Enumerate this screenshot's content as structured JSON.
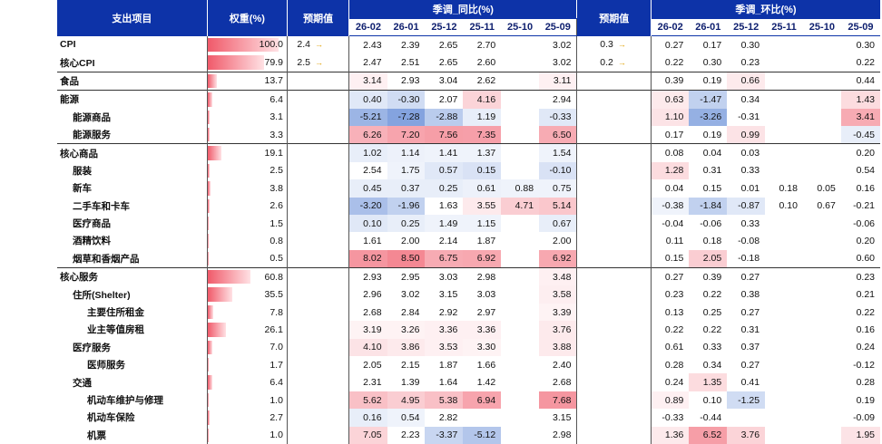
{
  "header": {
    "item_col": "支出项目",
    "weight_col": "权重(%)",
    "forecast_col": "预期值",
    "yoy_group": "季调_同比(%)",
    "forecast_col2": "预期值",
    "mom_group": "季调_环比(%)",
    "months": [
      "26-02",
      "26-01",
      "25-12",
      "25-11",
      "25-10",
      "25-09"
    ]
  },
  "colors": {
    "header_bg": "#0d33a8",
    "header_text": "#ffffff",
    "subheader_text": "#0d1e6e",
    "weight_bar": "#f05a6a",
    "cell_red": "#f05a6a",
    "cell_blue": "#4a78d0",
    "arrow": "#e0a000"
  },
  "rows": [
    {
      "name": "CPI",
      "indent": 0,
      "weight": "100.0",
      "weight_pct": 1.0,
      "yoy_fc": "2.4",
      "yoy_arrow": "→",
      "yoy": [
        "2.43",
        "2.39",
        "2.65",
        "2.70",
        "",
        "3.02"
      ],
      "mom_fc": "0.3",
      "mom_arrow": "→",
      "mom": [
        "0.27",
        "0.17",
        "0.30",
        "",
        "",
        "0.30"
      ],
      "yoy_hl": [
        0,
        0,
        0,
        0,
        0,
        0
      ],
      "mom_hl": [
        0,
        0,
        0,
        0,
        0,
        0
      ]
    },
    {
      "name": "核心CPI",
      "indent": 0,
      "weight": "79.9",
      "weight_pct": 0.8,
      "yoy_fc": "2.5",
      "yoy_arrow": "→",
      "yoy": [
        "2.47",
        "2.51",
        "2.65",
        "2.60",
        "",
        "3.02"
      ],
      "mom_fc": "0.2",
      "mom_arrow": "→",
      "mom": [
        "0.22",
        "0.30",
        "0.23",
        "",
        "",
        "0.22"
      ],
      "yoy_hl": [
        0,
        0,
        0,
        0,
        0,
        0
      ],
      "mom_hl": [
        0,
        0,
        0,
        0,
        0,
        0
      ]
    },
    {
      "name": "食品",
      "indent": 0,
      "weight": "13.7",
      "weight_pct": 0.137,
      "yoy_fc": "",
      "yoy_arrow": "",
      "yoy": [
        "3.14",
        "2.93",
        "3.04",
        "2.62",
        "",
        "3.11"
      ],
      "mom_fc": "",
      "mom_arrow": "",
      "mom": [
        "0.39",
        "0.19",
        "0.66",
        "",
        "",
        "0.44"
      ],
      "yoy_hl": [
        0.1,
        0,
        0,
        0,
        0,
        0.1
      ],
      "mom_hl": [
        0,
        0,
        0.15,
        0,
        0,
        0
      ],
      "grp": true
    },
    {
      "name": "能源",
      "indent": 0,
      "weight": "6.4",
      "weight_pct": 0.064,
      "yoy_fc": "",
      "yoy_arrow": "",
      "yoy": [
        "0.40",
        "-0.30",
        "2.07",
        "4.16",
        "",
        "2.94"
      ],
      "mom_fc": "",
      "mom_arrow": "",
      "mom": [
        "0.63",
        "-1.47",
        "0.34",
        "",
        "",
        "1.43"
      ],
      "yoy_hl": [
        -0.2,
        -0.3,
        0,
        0.3,
        0,
        0
      ],
      "mom_hl": [
        0.15,
        -0.4,
        0,
        0,
        0,
        0.25
      ],
      "grp": true
    },
    {
      "name": "能源商品",
      "indent": 1,
      "weight": "3.1",
      "weight_pct": 0.031,
      "yoy_fc": "",
      "yoy_arrow": "",
      "yoy": [
        "-5.21",
        "-7.28",
        "-2.88",
        "1.19",
        "",
        "-0.33"
      ],
      "mom_fc": "",
      "mom_arrow": "",
      "mom": [
        "1.10",
        "-3.26",
        "-0.31",
        "",
        "",
        "3.41"
      ],
      "yoy_hl": [
        -0.65,
        -0.8,
        -0.45,
        -0.15,
        0,
        -0.2
      ],
      "mom_hl": [
        0.2,
        -0.7,
        0,
        0,
        0,
        0.6
      ]
    },
    {
      "name": "能源服务",
      "indent": 1,
      "weight": "3.3",
      "weight_pct": 0.033,
      "yoy_fc": "",
      "yoy_arrow": "",
      "yoy": [
        "6.26",
        "7.20",
        "7.56",
        "7.35",
        "",
        "6.50"
      ],
      "mom_fc": "",
      "mom_arrow": "",
      "mom": [
        "0.17",
        "0.19",
        "0.99",
        "",
        "",
        "-0.45"
      ],
      "yoy_hl": [
        0.55,
        0.65,
        0.7,
        0.68,
        0,
        0.6
      ],
      "mom_hl": [
        0,
        0,
        0.2,
        0,
        0,
        -0.15
      ]
    },
    {
      "name": "核心商品",
      "indent": 0,
      "weight": "19.1",
      "weight_pct": 0.191,
      "yoy_fc": "",
      "yoy_arrow": "",
      "yoy": [
        "1.02",
        "1.14",
        "1.41",
        "1.37",
        "",
        "1.54"
      ],
      "mom_fc": "",
      "mom_arrow": "",
      "mom": [
        "0.08",
        "0.04",
        "0.03",
        "",
        "",
        "0.20"
      ],
      "yoy_hl": [
        -0.15,
        -0.12,
        -0.1,
        -0.1,
        0,
        -0.1
      ],
      "mom_hl": [
        0,
        0,
        0,
        0,
        0,
        0
      ],
      "grp": true
    },
    {
      "name": "服装",
      "indent": 1,
      "weight": "2.5",
      "weight_pct": 0.025,
      "yoy_fc": "",
      "yoy_arrow": "",
      "yoy": [
        "2.54",
        "1.75",
        "0.57",
        "0.15",
        "",
        "-0.10"
      ],
      "mom_fc": "",
      "mom_arrow": "",
      "mom": [
        "1.28",
        "0.31",
        "0.33",
        "",
        "",
        "0.54"
      ],
      "yoy_hl": [
        0,
        -0.1,
        -0.2,
        -0.25,
        0,
        -0.25
      ],
      "mom_hl": [
        0.25,
        0,
        0,
        0,
        0,
        0
      ]
    },
    {
      "name": "新车",
      "indent": 1,
      "weight": "3.8",
      "weight_pct": 0.038,
      "yoy_fc": "",
      "yoy_arrow": "",
      "yoy": [
        "0.45",
        "0.37",
        "0.25",
        "0.61",
        "0.88",
        "0.75"
      ],
      "mom_fc": "",
      "mom_arrow": "",
      "mom": [
        "0.04",
        "0.15",
        "0.01",
        "0.18",
        "0.05",
        "0.16"
      ],
      "yoy_hl": [
        -0.15,
        -0.15,
        -0.15,
        -0.12,
        -0.1,
        -0.1
      ],
      "mom_hl": [
        0,
        0,
        0,
        0,
        0,
        0
      ]
    },
    {
      "name": "二手车和卡车",
      "indent": 1,
      "weight": "2.6",
      "weight_pct": 0.026,
      "yoy_fc": "",
      "yoy_arrow": "",
      "yoy": [
        "-3.20",
        "-1.96",
        "1.63",
        "3.55",
        "4.71",
        "5.14"
      ],
      "mom_fc": "",
      "mom_arrow": "",
      "mom": [
        "-0.38",
        "-1.84",
        "-0.87",
        "0.10",
        "0.67",
        "-0.21"
      ],
      "yoy_hl": [
        -0.55,
        -0.4,
        0,
        0.15,
        0.35,
        0.4
      ],
      "mom_hl": [
        -0.1,
        -0.4,
        -0.2,
        0,
        0,
        0
      ]
    },
    {
      "name": "医疗商品",
      "indent": 1,
      "weight": "1.5",
      "weight_pct": 0.015,
      "yoy_fc": "",
      "yoy_arrow": "",
      "yoy": [
        "0.10",
        "0.25",
        "1.49",
        "1.15",
        "",
        "0.67"
      ],
      "mom_fc": "",
      "mom_arrow": "",
      "mom": [
        "-0.04",
        "-0.06",
        "0.33",
        "",
        "",
        "-0.06"
      ],
      "yoy_hl": [
        -0.2,
        -0.15,
        -0.1,
        -0.1,
        0,
        -0.15
      ],
      "mom_hl": [
        0,
        0,
        0,
        0,
        0,
        0
      ]
    },
    {
      "name": "酒精饮料",
      "indent": 1,
      "weight": "0.8",
      "weight_pct": 0.008,
      "yoy_fc": "",
      "yoy_arrow": "",
      "yoy": [
        "1.61",
        "2.00",
        "2.14",
        "1.87",
        "",
        "2.00"
      ],
      "mom_fc": "",
      "mom_arrow": "",
      "mom": [
        "0.11",
        "0.18",
        "-0.08",
        "",
        "",
        "0.20"
      ],
      "yoy_hl": [
        0,
        0,
        0,
        0,
        0,
        0
      ],
      "mom_hl": [
        0,
        0,
        0,
        0,
        0,
        0
      ]
    },
    {
      "name": "烟草和香烟产品",
      "indent": 1,
      "weight": "0.5",
      "weight_pct": 0.005,
      "yoy_fc": "",
      "yoy_arrow": "",
      "yoy": [
        "8.02",
        "8.50",
        "6.75",
        "6.92",
        "",
        "6.92"
      ],
      "mom_fc": "",
      "mom_arrow": "",
      "mom": [
        "0.15",
        "2.05",
        "-0.18",
        "",
        "",
        "0.60"
      ],
      "yoy_hl": [
        0.75,
        0.85,
        0.6,
        0.62,
        0,
        0.62
      ],
      "mom_hl": [
        0,
        0.35,
        0,
        0,
        0,
        0
      ]
    },
    {
      "name": "核心服务",
      "indent": 0,
      "weight": "60.8",
      "weight_pct": 0.608,
      "yoy_fc": "",
      "yoy_arrow": "",
      "yoy": [
        "2.93",
        "2.95",
        "3.03",
        "2.98",
        "",
        "3.48"
      ],
      "mom_fc": "",
      "mom_arrow": "",
      "mom": [
        "0.27",
        "0.39",
        "0.27",
        "",
        "",
        "0.23"
      ],
      "yoy_hl": [
        0,
        0,
        0,
        0,
        0,
        0.1
      ],
      "mom_hl": [
        0,
        0,
        0,
        0,
        0,
        0
      ],
      "grp": true
    },
    {
      "name": "住所(Shelter)",
      "indent": 1,
      "weight": "35.5",
      "weight_pct": 0.355,
      "yoy_fc": "",
      "yoy_arrow": "",
      "yoy": [
        "2.96",
        "3.02",
        "3.15",
        "3.03",
        "",
        "3.58"
      ],
      "mom_fc": "",
      "mom_arrow": "",
      "mom": [
        "0.23",
        "0.22",
        "0.38",
        "",
        "",
        "0.21"
      ],
      "yoy_hl": [
        0,
        0,
        0,
        0,
        0,
        0.12
      ],
      "mom_hl": [
        0,
        0,
        0,
        0,
        0,
        0
      ]
    },
    {
      "name": "主要住所租金",
      "indent": 2,
      "weight": "7.8",
      "weight_pct": 0.078,
      "yoy_fc": "",
      "yoy_arrow": "",
      "yoy": [
        "2.68",
        "2.84",
        "2.92",
        "2.97",
        "",
        "3.39"
      ],
      "mom_fc": "",
      "mom_arrow": "",
      "mom": [
        "0.13",
        "0.25",
        "0.27",
        "",
        "",
        "0.22"
      ],
      "yoy_hl": [
        0,
        0,
        0,
        0,
        0,
        0.08
      ],
      "mom_hl": [
        0,
        0,
        0,
        0,
        0,
        0
      ]
    },
    {
      "name": "业主等值房租",
      "indent": 2,
      "weight": "26.1",
      "weight_pct": 0.261,
      "yoy_fc": "",
      "yoy_arrow": "",
      "yoy": [
        "3.19",
        "3.26",
        "3.36",
        "3.36",
        "",
        "3.76"
      ],
      "mom_fc": "",
      "mom_arrow": "",
      "mom": [
        "0.22",
        "0.22",
        "0.31",
        "",
        "",
        "0.16"
      ],
      "yoy_hl": [
        0.08,
        0.08,
        0.1,
        0.1,
        0,
        0.15
      ],
      "mom_hl": [
        0,
        0,
        0,
        0,
        0,
        0
      ]
    },
    {
      "name": "医疗服务",
      "indent": 1,
      "weight": "7.0",
      "weight_pct": 0.07,
      "yoy_fc": "",
      "yoy_arrow": "",
      "yoy": [
        "4.10",
        "3.86",
        "3.53",
        "3.30",
        "",
        "3.88"
      ],
      "mom_fc": "",
      "mom_arrow": "",
      "mom": [
        "0.61",
        "0.33",
        "0.37",
        "",
        "",
        "0.24"
      ],
      "yoy_hl": [
        0.2,
        0.15,
        0.1,
        0.08,
        0,
        0.15
      ],
      "mom_hl": [
        0,
        0,
        0,
        0,
        0,
        0
      ]
    },
    {
      "name": "医师服务",
      "indent": 2,
      "weight": "1.7",
      "weight_pct": 0.017,
      "yoy_fc": "",
      "yoy_arrow": "",
      "yoy": [
        "2.05",
        "2.15",
        "1.87",
        "1.66",
        "",
        "2.40"
      ],
      "mom_fc": "",
      "mom_arrow": "",
      "mom": [
        "0.28",
        "0.34",
        "0.27",
        "",
        "",
        "-0.12"
      ],
      "yoy_hl": [
        0,
        0,
        0,
        0,
        0,
        0
      ],
      "mom_hl": [
        0,
        0,
        0,
        0,
        0,
        0
      ]
    },
    {
      "name": "交通",
      "indent": 1,
      "weight": "6.4",
      "weight_pct": 0.064,
      "yoy_fc": "",
      "yoy_arrow": "",
      "yoy": [
        "2.31",
        "1.39",
        "1.64",
        "1.42",
        "",
        "2.68"
      ],
      "mom_fc": "",
      "mom_arrow": "",
      "mom": [
        "0.24",
        "1.35",
        "0.41",
        "",
        "",
        "0.28"
      ],
      "yoy_hl": [
        0,
        0,
        0,
        0,
        0,
        0
      ],
      "mom_hl": [
        0,
        0.25,
        0,
        0,
        0,
        0
      ]
    },
    {
      "name": "机动车维护与修理",
      "indent": 2,
      "weight": "1.0",
      "weight_pct": 0.01,
      "yoy_fc": "",
      "yoy_arrow": "",
      "yoy": [
        "5.62",
        "4.95",
        "5.38",
        "6.94",
        "",
        "7.68"
      ],
      "mom_fc": "",
      "mom_arrow": "",
      "mom": [
        "0.89",
        "0.10",
        "-1.25",
        "",
        "",
        "0.19"
      ],
      "yoy_hl": [
        0.45,
        0.35,
        0.45,
        0.65,
        0,
        0.75
      ],
      "mom_hl": [
        0.1,
        0,
        -0.3,
        0,
        0,
        0
      ]
    },
    {
      "name": "机动车保险",
      "indent": 2,
      "weight": "2.7",
      "weight_pct": 0.027,
      "yoy_fc": "",
      "yoy_arrow": "",
      "yoy": [
        "0.16",
        "0.54",
        "2.82",
        "",
        "",
        "3.15"
      ],
      "mom_fc": "",
      "mom_arrow": "",
      "mom": [
        "-0.33",
        "-0.44",
        "",
        "",
        "",
        "-0.09"
      ],
      "yoy_hl": [
        -0.15,
        -0.1,
        0,
        0,
        0,
        0
      ],
      "mom_hl": [
        0,
        0,
        0,
        0,
        0,
        0
      ]
    },
    {
      "name": "机票",
      "indent": 2,
      "weight": "1.0",
      "weight_pct": 0.01,
      "yoy_fc": "",
      "yoy_arrow": "",
      "yoy": [
        "7.05",
        "2.23",
        "-3.37",
        "-5.12",
        "",
        "2.98"
      ],
      "mom_fc": "",
      "mom_arrow": "",
      "mom": [
        "1.36",
        "6.52",
        "3.76",
        "",
        "",
        "1.95"
      ],
      "yoy_hl": [
        0.3,
        0,
        -0.35,
        -0.5,
        0,
        0
      ],
      "mom_hl": [
        0.15,
        0.7,
        0.3,
        0,
        0,
        0.2
      ]
    }
  ]
}
